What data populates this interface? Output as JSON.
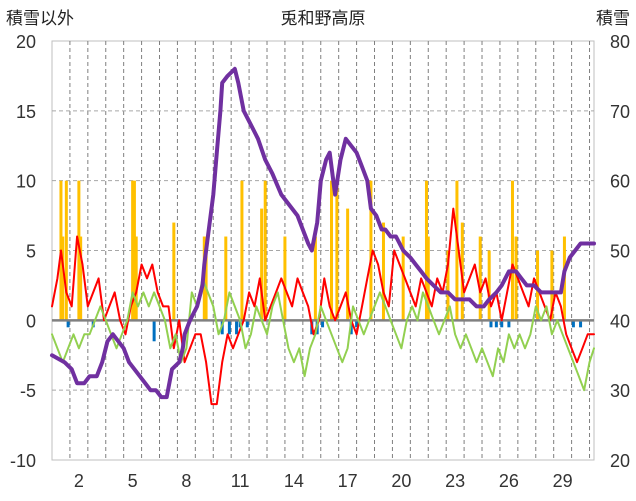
{
  "chart_data": {
    "type": "line",
    "title": "兎和野高原",
    "left_axis_label": "積雪以外",
    "right_axis_label": "積雪",
    "ylim_left": [
      -10,
      20
    ],
    "ylim_right": [
      20,
      80
    ],
    "left_ticks": [
      "20",
      "15",
      "10",
      "5",
      "0",
      "-5",
      "-10"
    ],
    "right_ticks": [
      "80",
      "70",
      "60",
      "50",
      "40",
      "30",
      "20"
    ],
    "xlim": [
      0.5,
      30.75
    ],
    "x_ticks": [
      2,
      5,
      8,
      11,
      14,
      17,
      20,
      23,
      26,
      29
    ],
    "x_tick_labels": [
      "2",
      "5",
      "8",
      "11",
      "14",
      "17",
      "20",
      "23",
      "26",
      "29"
    ],
    "grid": "dashed vertical daily, dashed horizontal",
    "colors": {
      "snow_depth": "#7030a0",
      "precip_max": "#ffc000",
      "temp_max": "#ff0000",
      "temp_min": "#92d050",
      "negative_bar": "#0070c0",
      "zero_line": "#808080"
    },
    "series": [
      {
        "axis": "right",
        "style": "line",
        "color": "#7030a0",
        "x": [
          0.5,
          1.2,
          1.6,
          1.9,
          2.3,
          2.6,
          3.0,
          3.3,
          3.6,
          3.9,
          4.2,
          4.5,
          4.8,
          5.1,
          5.4,
          5.7,
          6.0,
          6.3,
          6.6,
          6.9,
          7.2,
          7.6,
          7.8,
          7.9,
          8.2,
          8.6,
          8.9,
          9.0,
          9.2,
          9.5,
          9.7,
          9.9,
          10.0,
          10.3,
          10.7,
          10.9,
          11.2,
          11.6,
          12.0,
          12.4,
          12.8,
          13.3,
          13.6,
          13.9,
          14.2,
          14.5,
          14.8,
          15.0,
          15.3,
          15.5,
          15.8,
          16.0,
          16.3,
          16.6,
          16.9,
          17.2,
          17.5,
          17.8,
          18.1,
          18.3,
          18.6,
          18.9,
          19.1,
          19.4,
          19.7,
          20.1,
          20.5,
          20.8,
          21.1,
          21.4,
          21.8,
          22.2,
          22.6,
          23.0,
          23.3,
          23.8,
          24.2,
          24.6,
          24.9,
          25.3,
          25.6,
          25.8,
          26.0,
          26.4,
          26.7,
          27.0,
          27.4,
          27.8,
          28.2,
          28.6,
          28.9,
          29.1,
          29.4,
          29.7,
          30.0,
          30.3,
          30.75
        ],
        "values": [
          35,
          34,
          33,
          31,
          31,
          32,
          32,
          34,
          37,
          38,
          37,
          36,
          34,
          33,
          32,
          31,
          30,
          30,
          29,
          29,
          33,
          34,
          36,
          38,
          40,
          42,
          45,
          48,
          52,
          58,
          64,
          70,
          74,
          75,
          76,
          74,
          70,
          68,
          66,
          63,
          61,
          58,
          57,
          56,
          55,
          53,
          51,
          50,
          54,
          60,
          63,
          64,
          58,
          63,
          66,
          65,
          64,
          62,
          60,
          56,
          55,
          53,
          53,
          52,
          52,
          50,
          49,
          48,
          47,
          46,
          45,
          44,
          44,
          43,
          43,
          43,
          42,
          42,
          43,
          44,
          45,
          46,
          47,
          47,
          46,
          45,
          45,
          44,
          44,
          44,
          44,
          47,
          49,
          50,
          51,
          51,
          51
        ]
      },
      {
        "axis": "left",
        "style": "line",
        "color": "#ff0000",
        "x": [
          0.5,
          0.8,
          1.0,
          1.3,
          1.6,
          1.9,
          2.2,
          2.5,
          2.8,
          3.1,
          3.4,
          3.7,
          4.0,
          4.3,
          4.6,
          4.9,
          5.2,
          5.5,
          5.8,
          6.1,
          6.4,
          6.7,
          7.0,
          7.3,
          7.6,
          7.9,
          8.2,
          8.5,
          8.8,
          9.1,
          9.4,
          9.7,
          10.0,
          10.3,
          10.6,
          10.9,
          11.2,
          11.5,
          11.8,
          12.1,
          12.4,
          12.7,
          13.0,
          13.3,
          13.6,
          13.9,
          14.2,
          14.5,
          14.8,
          15.1,
          15.4,
          15.7,
          16.0,
          16.3,
          16.6,
          16.9,
          17.2,
          17.5,
          17.8,
          18.1,
          18.4,
          18.7,
          19.0,
          19.3,
          19.6,
          19.9,
          20.2,
          20.5,
          20.8,
          21.1,
          21.4,
          21.7,
          22.0,
          22.3,
          22.6,
          22.9,
          23.2,
          23.5,
          23.8,
          24.1,
          24.4,
          24.7,
          25.0,
          25.3,
          25.6,
          25.9,
          26.2,
          26.5,
          26.8,
          27.1,
          27.4,
          27.7,
          28.0,
          28.3,
          28.6,
          28.9,
          29.2,
          29.5,
          29.8,
          30.1,
          30.4,
          30.75
        ],
        "values": [
          1,
          3,
          5,
          2,
          1,
          6,
          4,
          1,
          2,
          3,
          0,
          1,
          2,
          0,
          -1,
          1,
          2,
          4,
          3,
          4,
          2,
          1,
          1,
          -2,
          0,
          -3,
          -2,
          -1,
          -1,
          -3,
          -6,
          -6,
          -3,
          -1,
          -2,
          -1,
          0,
          2,
          1,
          3,
          0,
          1,
          2,
          3,
          2,
          1,
          3,
          2,
          1,
          -1,
          0,
          3,
          1,
          0,
          1,
          2,
          0,
          -1,
          1,
          3,
          5,
          4,
          2,
          1,
          5,
          4,
          3,
          2,
          1,
          3,
          2,
          1,
          3,
          2,
          4,
          8,
          5,
          2,
          3,
          4,
          2,
          3,
          1,
          2,
          0,
          2,
          4,
          3,
          2,
          1,
          3,
          2,
          1,
          0,
          2,
          1,
          -1,
          -2,
          -3,
          -2,
          -1,
          -1
        ]
      },
      {
        "axis": "left",
        "style": "line",
        "color": "#92d050",
        "x": [
          0.5,
          0.8,
          1.1,
          1.4,
          1.7,
          2.0,
          2.3,
          2.6,
          2.9,
          3.2,
          3.5,
          3.8,
          4.1,
          4.4,
          4.7,
          5.0,
          5.3,
          5.6,
          5.9,
          6.2,
          6.5,
          6.8,
          7.1,
          7.4,
          7.7,
          8.0,
          8.3,
          8.6,
          8.9,
          9.2,
          9.5,
          9.8,
          10.1,
          10.4,
          10.7,
          11.0,
          11.3,
          11.6,
          11.9,
          12.2,
          12.5,
          12.8,
          13.1,
          13.4,
          13.7,
          14.0,
          14.3,
          14.6,
          14.9,
          15.2,
          15.5,
          15.8,
          16.1,
          16.4,
          16.7,
          17.0,
          17.3,
          17.6,
          17.9,
          18.2,
          18.5,
          18.8,
          19.1,
          19.4,
          19.7,
          20.0,
          20.3,
          20.6,
          20.9,
          21.2,
          21.5,
          21.8,
          22.1,
          22.4,
          22.7,
          23.0,
          23.3,
          23.6,
          23.9,
          24.2,
          24.5,
          24.8,
          25.1,
          25.4,
          25.7,
          26.0,
          26.3,
          26.6,
          26.9,
          27.2,
          27.5,
          27.8,
          28.1,
          28.4,
          28.7,
          29.0,
          29.3,
          29.6,
          29.9,
          30.2,
          30.5,
          30.75
        ],
        "values": [
          -1,
          -2,
          -3,
          -2,
          -1,
          -2,
          -1,
          -1,
          0,
          1,
          0,
          -1,
          -2,
          -1,
          0,
          2,
          1,
          2,
          1,
          2,
          1,
          0,
          -2,
          -1,
          -3,
          -2,
          2,
          1,
          3,
          2,
          1,
          -1,
          0,
          2,
          1,
          0,
          -2,
          -1,
          1,
          0,
          -1,
          1,
          2,
          0,
          -2,
          -3,
          -2,
          -4,
          -2,
          -1,
          1,
          0,
          -1,
          -2,
          -3,
          -2,
          1,
          0,
          -1,
          0,
          1,
          2,
          1,
          0,
          -1,
          -2,
          0,
          1,
          0,
          2,
          1,
          0,
          -1,
          0,
          1,
          -1,
          -2,
          -1,
          -2,
          -3,
          -2,
          -3,
          -4,
          -2,
          -3,
          -1,
          -2,
          -1,
          -2,
          -1,
          1,
          0,
          1,
          -1,
          0,
          -1,
          -2,
          -3,
          -4,
          -5,
          -3,
          -2
        ]
      },
      {
        "axis": "left",
        "style": "bars",
        "color": "#ffc000",
        "x": [
          1.0,
          1.1,
          1.3,
          2.0,
          2.1,
          5.0,
          5.1,
          5.2,
          7.3,
          9.0,
          9.1,
          10.2,
          11.1,
          12.2,
          12.4,
          13.5,
          15.2,
          16.1,
          16.4,
          17.0,
          18.3,
          19.0,
          20.1,
          21.4,
          21.5,
          22.6,
          23.1,
          23.4,
          24.4,
          24.9,
          26.2,
          26.4,
          27.6,
          28.4,
          29.1
        ],
        "values": [
          10,
          6,
          10,
          10,
          6,
          10,
          10,
          6,
          7,
          6,
          5,
          6,
          10,
          8,
          10,
          6,
          6,
          10,
          10,
          8,
          10,
          7,
          6,
          10,
          6,
          5,
          10,
          7,
          6,
          5,
          10,
          6,
          5,
          5,
          6
        ]
      },
      {
        "axis": "left",
        "style": "bars",
        "color": "#0070c0",
        "x": [
          1.4,
          2.8,
          6.2,
          10.0,
          10.4,
          10.8,
          11.0,
          11.4,
          15.0,
          15.3,
          15.6,
          17.2,
          17.5,
          25.0,
          25.3,
          25.6,
          26.0,
          29.6,
          30.0
        ],
        "values": [
          -0.5,
          -0.5,
          -1.5,
          -1,
          -1,
          -1,
          -0.5,
          -0.5,
          -1,
          -1,
          -0.5,
          -1,
          -0.5,
          -0.5,
          -0.5,
          -0.5,
          -0.5,
          -0.5,
          -0.5
        ]
      }
    ]
  }
}
